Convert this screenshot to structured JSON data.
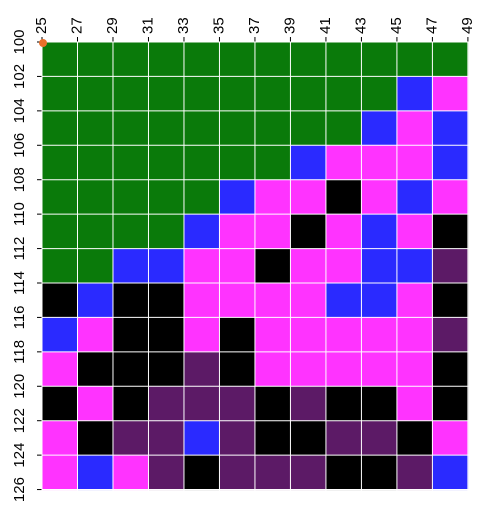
{
  "chart_data": {
    "type": "heatmap",
    "x": [
      26,
      28,
      30,
      32,
      34,
      36,
      38,
      40,
      42,
      44,
      46,
      48
    ],
    "y": [
      101,
      103,
      105,
      107,
      109,
      111,
      113,
      115,
      117,
      119,
      121,
      123,
      125
    ],
    "cell_width": 2,
    "cell_height": 2,
    "colors": [
      "#0a7a0a",
      "#2a2aff",
      "#ff33ff",
      "#000000",
      "#5c1a66"
    ],
    "values": [
      [
        0,
        0,
        0,
        0,
        0,
        0,
        0,
        0,
        0,
        0,
        0,
        0
      ],
      [
        0,
        0,
        0,
        0,
        0,
        0,
        0,
        0,
        0,
        0,
        1,
        2
      ],
      [
        0,
        0,
        0,
        0,
        0,
        0,
        0,
        0,
        0,
        1,
        2,
        1
      ],
      [
        0,
        0,
        0,
        0,
        0,
        0,
        0,
        1,
        2,
        2,
        2,
        1
      ],
      [
        0,
        0,
        0,
        0,
        0,
        1,
        2,
        2,
        3,
        2,
        1,
        2
      ],
      [
        0,
        0,
        0,
        0,
        1,
        2,
        2,
        3,
        2,
        1,
        2,
        3
      ],
      [
        0,
        0,
        1,
        1,
        2,
        2,
        3,
        2,
        2,
        1,
        1,
        4
      ],
      [
        3,
        1,
        3,
        3,
        2,
        2,
        2,
        2,
        1,
        1,
        2,
        3
      ],
      [
        1,
        2,
        3,
        3,
        2,
        3,
        2,
        2,
        2,
        2,
        2,
        4
      ],
      [
        2,
        3,
        3,
        3,
        4,
        3,
        2,
        2,
        2,
        2,
        2,
        3
      ],
      [
        3,
        2,
        3,
        4,
        4,
        4,
        3,
        4,
        3,
        3,
        2,
        3
      ],
      [
        2,
        3,
        4,
        4,
        1,
        4,
        3,
        3,
        4,
        4,
        3,
        2
      ],
      [
        2,
        1,
        2,
        4,
        3,
        4,
        4,
        4,
        3,
        3,
        4,
        1
      ]
    ],
    "xlim": [
      25,
      49.4
    ],
    "ylim": [
      100,
      126.2
    ],
    "xticks": [
      25,
      27,
      29,
      31,
      33,
      35,
      37,
      39,
      41,
      43,
      45,
      47,
      49
    ],
    "yticks": [
      100,
      102,
      104,
      106,
      108,
      110,
      112,
      114,
      116,
      118,
      120,
      122,
      124,
      126
    ],
    "grid": true,
    "grid_color": "#ffffff"
  }
}
